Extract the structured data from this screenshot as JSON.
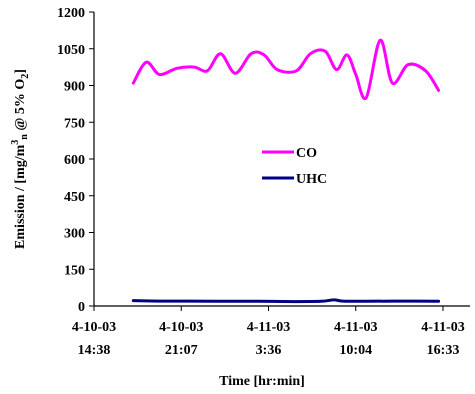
{
  "chart_data": {
    "type": "line",
    "ylabel_parts": [
      "Emission / [mg/m",
      "3",
      "n",
      " @ 5% O",
      "2",
      "]"
    ],
    "xlabel": "Time [hr:min]",
    "ylim": [
      0,
      1200
    ],
    "yticks": [
      0,
      150,
      300,
      450,
      600,
      750,
      900,
      1050,
      1200
    ],
    "xlim": [
      0,
      4
    ],
    "xticks": [
      {
        "pos": 0,
        "date": "4-10-03",
        "time": "14:38"
      },
      {
        "pos": 1,
        "date": "4-10-03",
        "time": "21:07"
      },
      {
        "pos": 2,
        "date": "4-11-03",
        "time": "3:36"
      },
      {
        "pos": 3,
        "date": "4-11-03",
        "time": "10:04"
      },
      {
        "pos": 4,
        "date": "4-11-03",
        "time": "16:33"
      }
    ],
    "grid": false,
    "legend_position": "center-right",
    "series": [
      {
        "name": "CO",
        "color": "#ff00ff",
        "x": [
          0.45,
          0.6,
          0.75,
          0.95,
          1.15,
          1.3,
          1.45,
          1.62,
          1.8,
          1.95,
          2.1,
          2.32,
          2.48,
          2.65,
          2.78,
          2.9,
          3.0,
          3.12,
          3.28,
          3.42,
          3.6,
          3.8,
          3.95
        ],
        "values": [
          910,
          995,
          945,
          970,
          975,
          960,
          1030,
          950,
          1030,
          1025,
          965,
          960,
          1030,
          1040,
          965,
          1025,
          945,
          850,
          1085,
          910,
          985,
          960,
          880
        ]
      },
      {
        "name": "UHC",
        "color": "#000080",
        "x": [
          0.45,
          0.75,
          1.1,
          1.5,
          1.9,
          2.3,
          2.6,
          2.75,
          2.85,
          3.1,
          3.5,
          3.95
        ],
        "values": [
          22,
          20,
          20,
          19,
          19,
          18,
          19,
          25,
          20,
          19,
          20,
          19
        ]
      }
    ]
  }
}
